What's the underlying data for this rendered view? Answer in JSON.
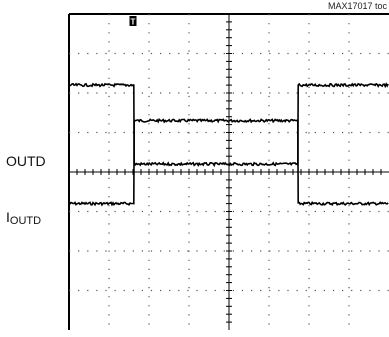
{
  "figure_id": "MAX17017 toc",
  "channels": [
    {
      "label": "OUTD",
      "label_sub": ""
    },
    {
      "label": "I",
      "label_sub": "OUTD"
    }
  ],
  "trigger_marker": "T",
  "chart_data": {
    "type": "line",
    "x_divisions": 8,
    "y_divisions": 8,
    "grid": true,
    "x": [
      0.0,
      1.62,
      1.63,
      5.72,
      5.73,
      8.0
    ],
    "series": [
      {
        "values": [
          3.2,
          3.2,
          5.3,
          5.3,
          3.2,
          3.2
        ]
      },
      {
        "values": [
          6.2,
          6.2,
          4.2,
          4.2,
          6.2,
          6.2
        ]
      }
    ]
  }
}
